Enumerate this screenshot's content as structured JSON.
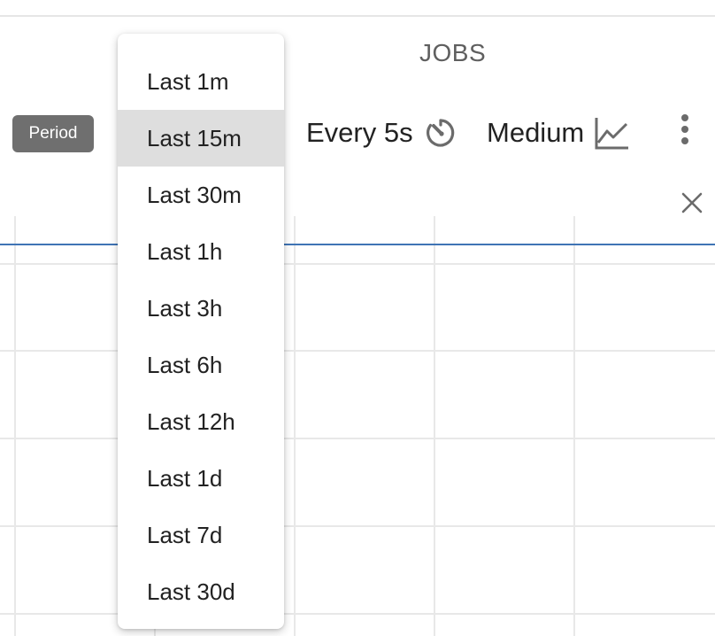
{
  "header": {
    "title": "JOBS"
  },
  "toolbar": {
    "period_label": "Period",
    "refresh_label": "Every 5s",
    "refresh_icon": "timer-icon",
    "metric_label": "Medium",
    "metric_icon": "line-chart-icon",
    "more_icon": "more-vert-icon",
    "close_icon": "close-icon"
  },
  "period_menu": {
    "selected": "Last 15m",
    "items": [
      {
        "label": "Last 1m"
      },
      {
        "label": "Last 15m"
      },
      {
        "label": "Last 30m"
      },
      {
        "label": "Last 1h"
      },
      {
        "label": "Last 3h"
      },
      {
        "label": "Last 6h"
      },
      {
        "label": "Last 12h"
      },
      {
        "label": "Last 1d"
      },
      {
        "label": "Last 7d"
      },
      {
        "label": "Last 30d"
      }
    ]
  },
  "colors": {
    "series_line": "#3f74b5",
    "grid": "#e8e8e8",
    "chip_bg": "#6f6f6f",
    "menu_selected_bg": "#dedede",
    "icon": "#6b6b6b"
  }
}
